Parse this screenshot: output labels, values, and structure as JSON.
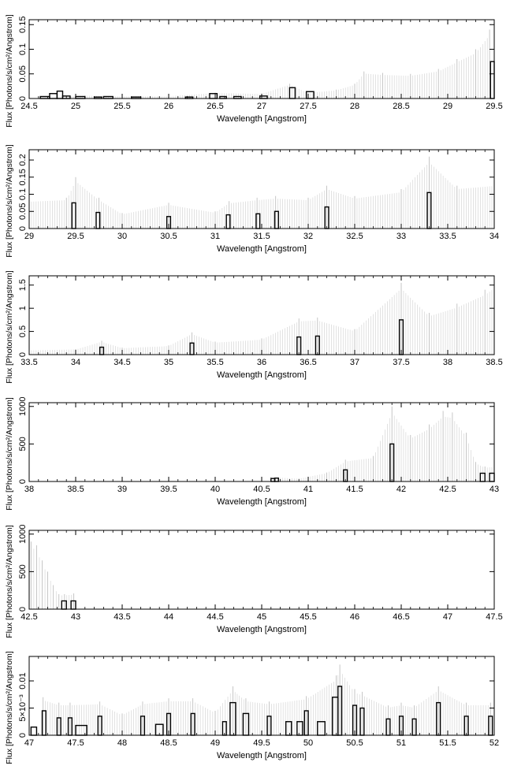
{
  "chart_data": [
    {
      "type": "bar",
      "xlabel": "Wavelength [Angstrom]",
      "ylabel": "Flux [Photons/s/cm²/Angstrom]",
      "xlim": [
        24.5,
        29.5
      ],
      "ylim": [
        0,
        0.16
      ],
      "xticks": [
        "24.5",
        "25",
        "25.5",
        "26",
        "26.5",
        "27",
        "27.5",
        "28",
        "28.5",
        "29",
        "29.5"
      ],
      "yticks": [
        "0",
        "0.05",
        "0.1",
        "0.15"
      ],
      "bars": [
        {
          "x0": 24.62,
          "x1": 24.72,
          "y": 0.004
        },
        {
          "x0": 24.72,
          "x1": 24.8,
          "y": 0.01
        },
        {
          "x0": 24.8,
          "x1": 24.86,
          "y": 0.015
        },
        {
          "x0": 24.86,
          "x1": 24.94,
          "y": 0.005
        },
        {
          "x0": 25.0,
          "x1": 25.1,
          "y": 0.004
        },
        {
          "x0": 25.2,
          "x1": 25.28,
          "y": 0.003
        },
        {
          "x0": 25.3,
          "x1": 25.4,
          "y": 0.004
        },
        {
          "x0": 25.6,
          "x1": 25.7,
          "y": 0.003
        },
        {
          "x0": 26.18,
          "x1": 26.26,
          "y": 0.003
        },
        {
          "x0": 26.44,
          "x1": 26.52,
          "y": 0.01
        },
        {
          "x0": 26.55,
          "x1": 26.62,
          "y": 0.004
        },
        {
          "x0": 26.7,
          "x1": 26.78,
          "y": 0.004
        },
        {
          "x0": 26.98,
          "x1": 27.06,
          "y": 0.005
        },
        {
          "x0": 27.3,
          "x1": 27.36,
          "y": 0.022
        },
        {
          "x0": 27.48,
          "x1": 27.56,
          "y": 0.014
        },
        {
          "x0": 29.46,
          "x1": 29.5,
          "y": 0.075
        }
      ],
      "errors": [
        {
          "x": 24.9,
          "y": 0.005
        },
        {
          "x": 25.1,
          "y": 0.006
        },
        {
          "x": 25.5,
          "y": 0.005
        },
        {
          "x": 26.0,
          "y": 0.005
        },
        {
          "x": 26.5,
          "y": 0.012
        },
        {
          "x": 27.0,
          "y": 0.01
        },
        {
          "x": 27.3,
          "y": 0.03
        },
        {
          "x": 27.5,
          "y": 0.012
        },
        {
          "x": 27.8,
          "y": 0.018
        },
        {
          "x": 28.0,
          "y": 0.03
        },
        {
          "x": 28.1,
          "y": 0.055
        },
        {
          "x": 28.3,
          "y": 0.052
        },
        {
          "x": 28.6,
          "y": 0.05
        },
        {
          "x": 28.9,
          "y": 0.06
        },
        {
          "x": 29.1,
          "y": 0.08
        },
        {
          "x": 29.3,
          "y": 0.1
        },
        {
          "x": 29.45,
          "y": 0.14
        }
      ]
    },
    {
      "type": "bar",
      "xlabel": "Wavelength [Angstrom]",
      "ylabel": "Flux [Photons/s/cm²/Angstrom]",
      "xlim": [
        29,
        34
      ],
      "ylim": [
        0,
        0.23
      ],
      "xticks": [
        "29",
        "29.5",
        "30",
        "30.5",
        "31",
        "31.5",
        "32",
        "32.5",
        "33",
        "33.5",
        "34"
      ],
      "yticks": [
        "0",
        "0.05",
        "0.1",
        "0.15",
        "0.2"
      ],
      "bars": [
        {
          "x0": 29.46,
          "x1": 29.5,
          "y": 0.075
        },
        {
          "x0": 29.72,
          "x1": 29.76,
          "y": 0.047
        },
        {
          "x0": 30.48,
          "x1": 30.52,
          "y": 0.035
        },
        {
          "x0": 31.12,
          "x1": 31.16,
          "y": 0.04
        },
        {
          "x0": 31.44,
          "x1": 31.48,
          "y": 0.043
        },
        {
          "x0": 31.64,
          "x1": 31.68,
          "y": 0.05
        },
        {
          "x0": 32.18,
          "x1": 32.22,
          "y": 0.063
        },
        {
          "x0": 33.28,
          "x1": 33.32,
          "y": 0.105
        }
      ],
      "errors": [
        {
          "x": 29.0,
          "y": 0.085
        },
        {
          "x": 29.4,
          "y": 0.09
        },
        {
          "x": 29.5,
          "y": 0.15
        },
        {
          "x": 29.75,
          "y": 0.09
        },
        {
          "x": 30.0,
          "y": 0.045
        },
        {
          "x": 30.5,
          "y": 0.075
        },
        {
          "x": 31.0,
          "y": 0.05
        },
        {
          "x": 31.15,
          "y": 0.08
        },
        {
          "x": 31.45,
          "y": 0.09
        },
        {
          "x": 31.65,
          "y": 0.095
        },
        {
          "x": 32.0,
          "y": 0.09
        },
        {
          "x": 32.2,
          "y": 0.125
        },
        {
          "x": 32.5,
          "y": 0.095
        },
        {
          "x": 33.0,
          "y": 0.115
        },
        {
          "x": 33.3,
          "y": 0.21
        },
        {
          "x": 33.6,
          "y": 0.125
        },
        {
          "x": 34.0,
          "y": 0.135
        }
      ]
    },
    {
      "type": "bar",
      "xlabel": "Wavelength [Angstrom]",
      "ylabel": "Flux [Photons/s/cm²/Angstrom]",
      "xlim": [
        33.5,
        38.5
      ],
      "ylim": [
        0,
        1.7
      ],
      "xticks": [
        "33.5",
        "34",
        "34.5",
        "35",
        "35.5",
        "36",
        "36.5",
        "37",
        "37.5",
        "38",
        "38.5"
      ],
      "yticks": [
        "0",
        "0.5",
        "1",
        "1.5"
      ],
      "bars": [
        {
          "x0": 34.26,
          "x1": 34.3,
          "y": 0.16
        },
        {
          "x0": 35.23,
          "x1": 35.27,
          "y": 0.25
        },
        {
          "x0": 36.38,
          "x1": 36.42,
          "y": 0.38
        },
        {
          "x0": 36.58,
          "x1": 36.62,
          "y": 0.4
        },
        {
          "x0": 37.48,
          "x1": 37.52,
          "y": 0.75
        }
      ],
      "errors": [
        {
          "x": 33.5,
          "y": 0.1
        },
        {
          "x": 34.0,
          "y": 0.12
        },
        {
          "x": 34.28,
          "y": 0.3
        },
        {
          "x": 34.5,
          "y": 0.15
        },
        {
          "x": 35.0,
          "y": 0.2
        },
        {
          "x": 35.25,
          "y": 0.48
        },
        {
          "x": 35.5,
          "y": 0.28
        },
        {
          "x": 36.0,
          "y": 0.35
        },
        {
          "x": 36.4,
          "y": 0.78
        },
        {
          "x": 36.6,
          "y": 0.8
        },
        {
          "x": 37.0,
          "y": 0.55
        },
        {
          "x": 37.5,
          "y": 1.55
        },
        {
          "x": 37.8,
          "y": 0.9
        },
        {
          "x": 38.1,
          "y": 1.1
        },
        {
          "x": 38.4,
          "y": 1.4
        },
        {
          "x": 38.5,
          "y": 1.55
        }
      ]
    },
    {
      "type": "bar",
      "xlabel": "Wavelength [Angstrom]",
      "ylabel": "Flux [Photons/s/cm²/Angstrom]",
      "xlim": [
        38,
        43
      ],
      "ylim": [
        0,
        1050
      ],
      "xticks": [
        "38",
        "38.5",
        "39",
        "39.5",
        "40",
        "40.5",
        "41",
        "41.5",
        "42",
        "42.5",
        "43"
      ],
      "yticks": [
        "0",
        "500",
        "1000"
      ],
      "bars": [
        {
          "x0": 40.6,
          "x1": 40.64,
          "y": 40
        },
        {
          "x0": 40.64,
          "x1": 40.68,
          "y": 45
        },
        {
          "x0": 41.38,
          "x1": 41.42,
          "y": 155
        },
        {
          "x0": 41.88,
          "x1": 41.92,
          "y": 500
        },
        {
          "x0": 42.85,
          "x1": 42.9,
          "y": 110
        },
        {
          "x0": 42.95,
          "x1": 43.0,
          "y": 110
        }
      ],
      "errors": [
        {
          "x": 40.6,
          "y": 60
        },
        {
          "x": 40.9,
          "y": 40
        },
        {
          "x": 41.2,
          "y": 120
        },
        {
          "x": 41.4,
          "y": 290
        },
        {
          "x": 41.7,
          "y": 340
        },
        {
          "x": 41.9,
          "y": 1000
        },
        {
          "x": 42.1,
          "y": 620
        },
        {
          "x": 42.3,
          "y": 760
        },
        {
          "x": 42.45,
          "y": 940
        },
        {
          "x": 42.55,
          "y": 920
        },
        {
          "x": 42.7,
          "y": 650
        },
        {
          "x": 42.8,
          "y": 260
        },
        {
          "x": 42.9,
          "y": 200
        },
        {
          "x": 43.0,
          "y": 210
        }
      ]
    },
    {
      "type": "bar",
      "xlabel": "Wavelength [Angstrom]",
      "ylabel": "Flux [Photons/s/cm²/Angstrom]",
      "xlim": [
        42.5,
        47.5
      ],
      "ylim": [
        0,
        1050
      ],
      "xticks": [
        "42.5",
        "43",
        "43.5",
        "44",
        "44.5",
        "45",
        "45.5",
        "46",
        "46.5",
        "47",
        "47.5"
      ],
      "yticks": [
        "0",
        "500",
        "1000"
      ],
      "bars": [
        {
          "x0": 42.85,
          "x1": 42.9,
          "y": 110
        },
        {
          "x0": 42.95,
          "x1": 43.0,
          "y": 110
        }
      ],
      "errors": [
        {
          "x": 42.52,
          "y": 900
        },
        {
          "x": 42.58,
          "y": 850
        },
        {
          "x": 42.64,
          "y": 650
        },
        {
          "x": 42.7,
          "y": 500
        },
        {
          "x": 42.76,
          "y": 320
        },
        {
          "x": 42.82,
          "y": 200
        },
        {
          "x": 42.88,
          "y": 200
        },
        {
          "x": 42.98,
          "y": 210
        }
      ]
    },
    {
      "type": "bar",
      "xlabel": "Wavelength [Angstrom]",
      "ylabel": "Flux [Photons/s/cm²/Angstrom]",
      "xlim": [
        47,
        52
      ],
      "ylim": [
        0,
        0.0145
      ],
      "xticks": [
        "47",
        "47.5",
        "48",
        "48.5",
        "49",
        "49.5",
        "50",
        "50.5",
        "51",
        "51.5",
        "52"
      ],
      "yticks": [
        "0",
        "5×10⁻³",
        "0.01"
      ],
      "bars": [
        {
          "x0": 47.02,
          "x1": 47.08,
          "y": 0.0015
        },
        {
          "x0": 47.14,
          "x1": 47.18,
          "y": 0.0045
        },
        {
          "x0": 47.3,
          "x1": 47.34,
          "y": 0.0032
        },
        {
          "x0": 47.42,
          "x1": 47.46,
          "y": 0.0032
        },
        {
          "x0": 47.5,
          "x1": 47.62,
          "y": 0.0018
        },
        {
          "x0": 47.74,
          "x1": 47.78,
          "y": 0.0035
        },
        {
          "x0": 48.2,
          "x1": 48.24,
          "y": 0.0035
        },
        {
          "x0": 48.36,
          "x1": 48.44,
          "y": 0.002
        },
        {
          "x0": 48.48,
          "x1": 48.52,
          "y": 0.004
        },
        {
          "x0": 48.74,
          "x1": 48.78,
          "y": 0.004
        },
        {
          "x0": 49.08,
          "x1": 49.12,
          "y": 0.0025
        },
        {
          "x0": 49.16,
          "x1": 49.22,
          "y": 0.006
        },
        {
          "x0": 49.3,
          "x1": 49.36,
          "y": 0.004
        },
        {
          "x0": 49.56,
          "x1": 49.6,
          "y": 0.0035
        },
        {
          "x0": 49.76,
          "x1": 49.82,
          "y": 0.0025
        },
        {
          "x0": 49.88,
          "x1": 49.94,
          "y": 0.0025
        },
        {
          "x0": 49.96,
          "x1": 50.0,
          "y": 0.0045
        },
        {
          "x0": 50.1,
          "x1": 50.18,
          "y": 0.0025
        },
        {
          "x0": 50.26,
          "x1": 50.32,
          "y": 0.007
        },
        {
          "x0": 50.32,
          "x1": 50.36,
          "y": 0.009
        },
        {
          "x0": 50.48,
          "x1": 50.52,
          "y": 0.0055
        },
        {
          "x0": 50.56,
          "x1": 50.6,
          "y": 0.005
        },
        {
          "x0": 50.84,
          "x1": 50.88,
          "y": 0.003
        },
        {
          "x0": 50.98,
          "x1": 51.02,
          "y": 0.0035
        },
        {
          "x0": 51.12,
          "x1": 51.16,
          "y": 0.003
        },
        {
          "x0": 51.38,
          "x1": 51.42,
          "y": 0.006
        },
        {
          "x0": 51.68,
          "x1": 51.72,
          "y": 0.0035
        },
        {
          "x0": 51.94,
          "x1": 51.98,
          "y": 0.0035
        }
      ],
      "errors": [
        {
          "x": 47.15,
          "y": 0.007
        },
        {
          "x": 47.32,
          "y": 0.006
        },
        {
          "x": 47.44,
          "y": 0.006
        },
        {
          "x": 47.76,
          "y": 0.0062
        },
        {
          "x": 48.0,
          "y": 0.004
        },
        {
          "x": 48.22,
          "y": 0.0062
        },
        {
          "x": 48.5,
          "y": 0.0068
        },
        {
          "x": 48.76,
          "y": 0.0068
        },
        {
          "x": 49.0,
          "y": 0.0045
        },
        {
          "x": 49.19,
          "y": 0.009
        },
        {
          "x": 49.33,
          "y": 0.0068
        },
        {
          "x": 49.58,
          "y": 0.0062
        },
        {
          "x": 49.98,
          "y": 0.0072
        },
        {
          "x": 50.3,
          "y": 0.011
        },
        {
          "x": 50.34,
          "y": 0.013
        },
        {
          "x": 50.5,
          "y": 0.0085
        },
        {
          "x": 50.58,
          "y": 0.008
        },
        {
          "x": 50.86,
          "y": 0.0055
        },
        {
          "x": 51.0,
          "y": 0.006
        },
        {
          "x": 51.14,
          "y": 0.0055
        },
        {
          "x": 51.4,
          "y": 0.009
        },
        {
          "x": 51.7,
          "y": 0.006
        },
        {
          "x": 51.96,
          "y": 0.006
        }
      ]
    }
  ]
}
